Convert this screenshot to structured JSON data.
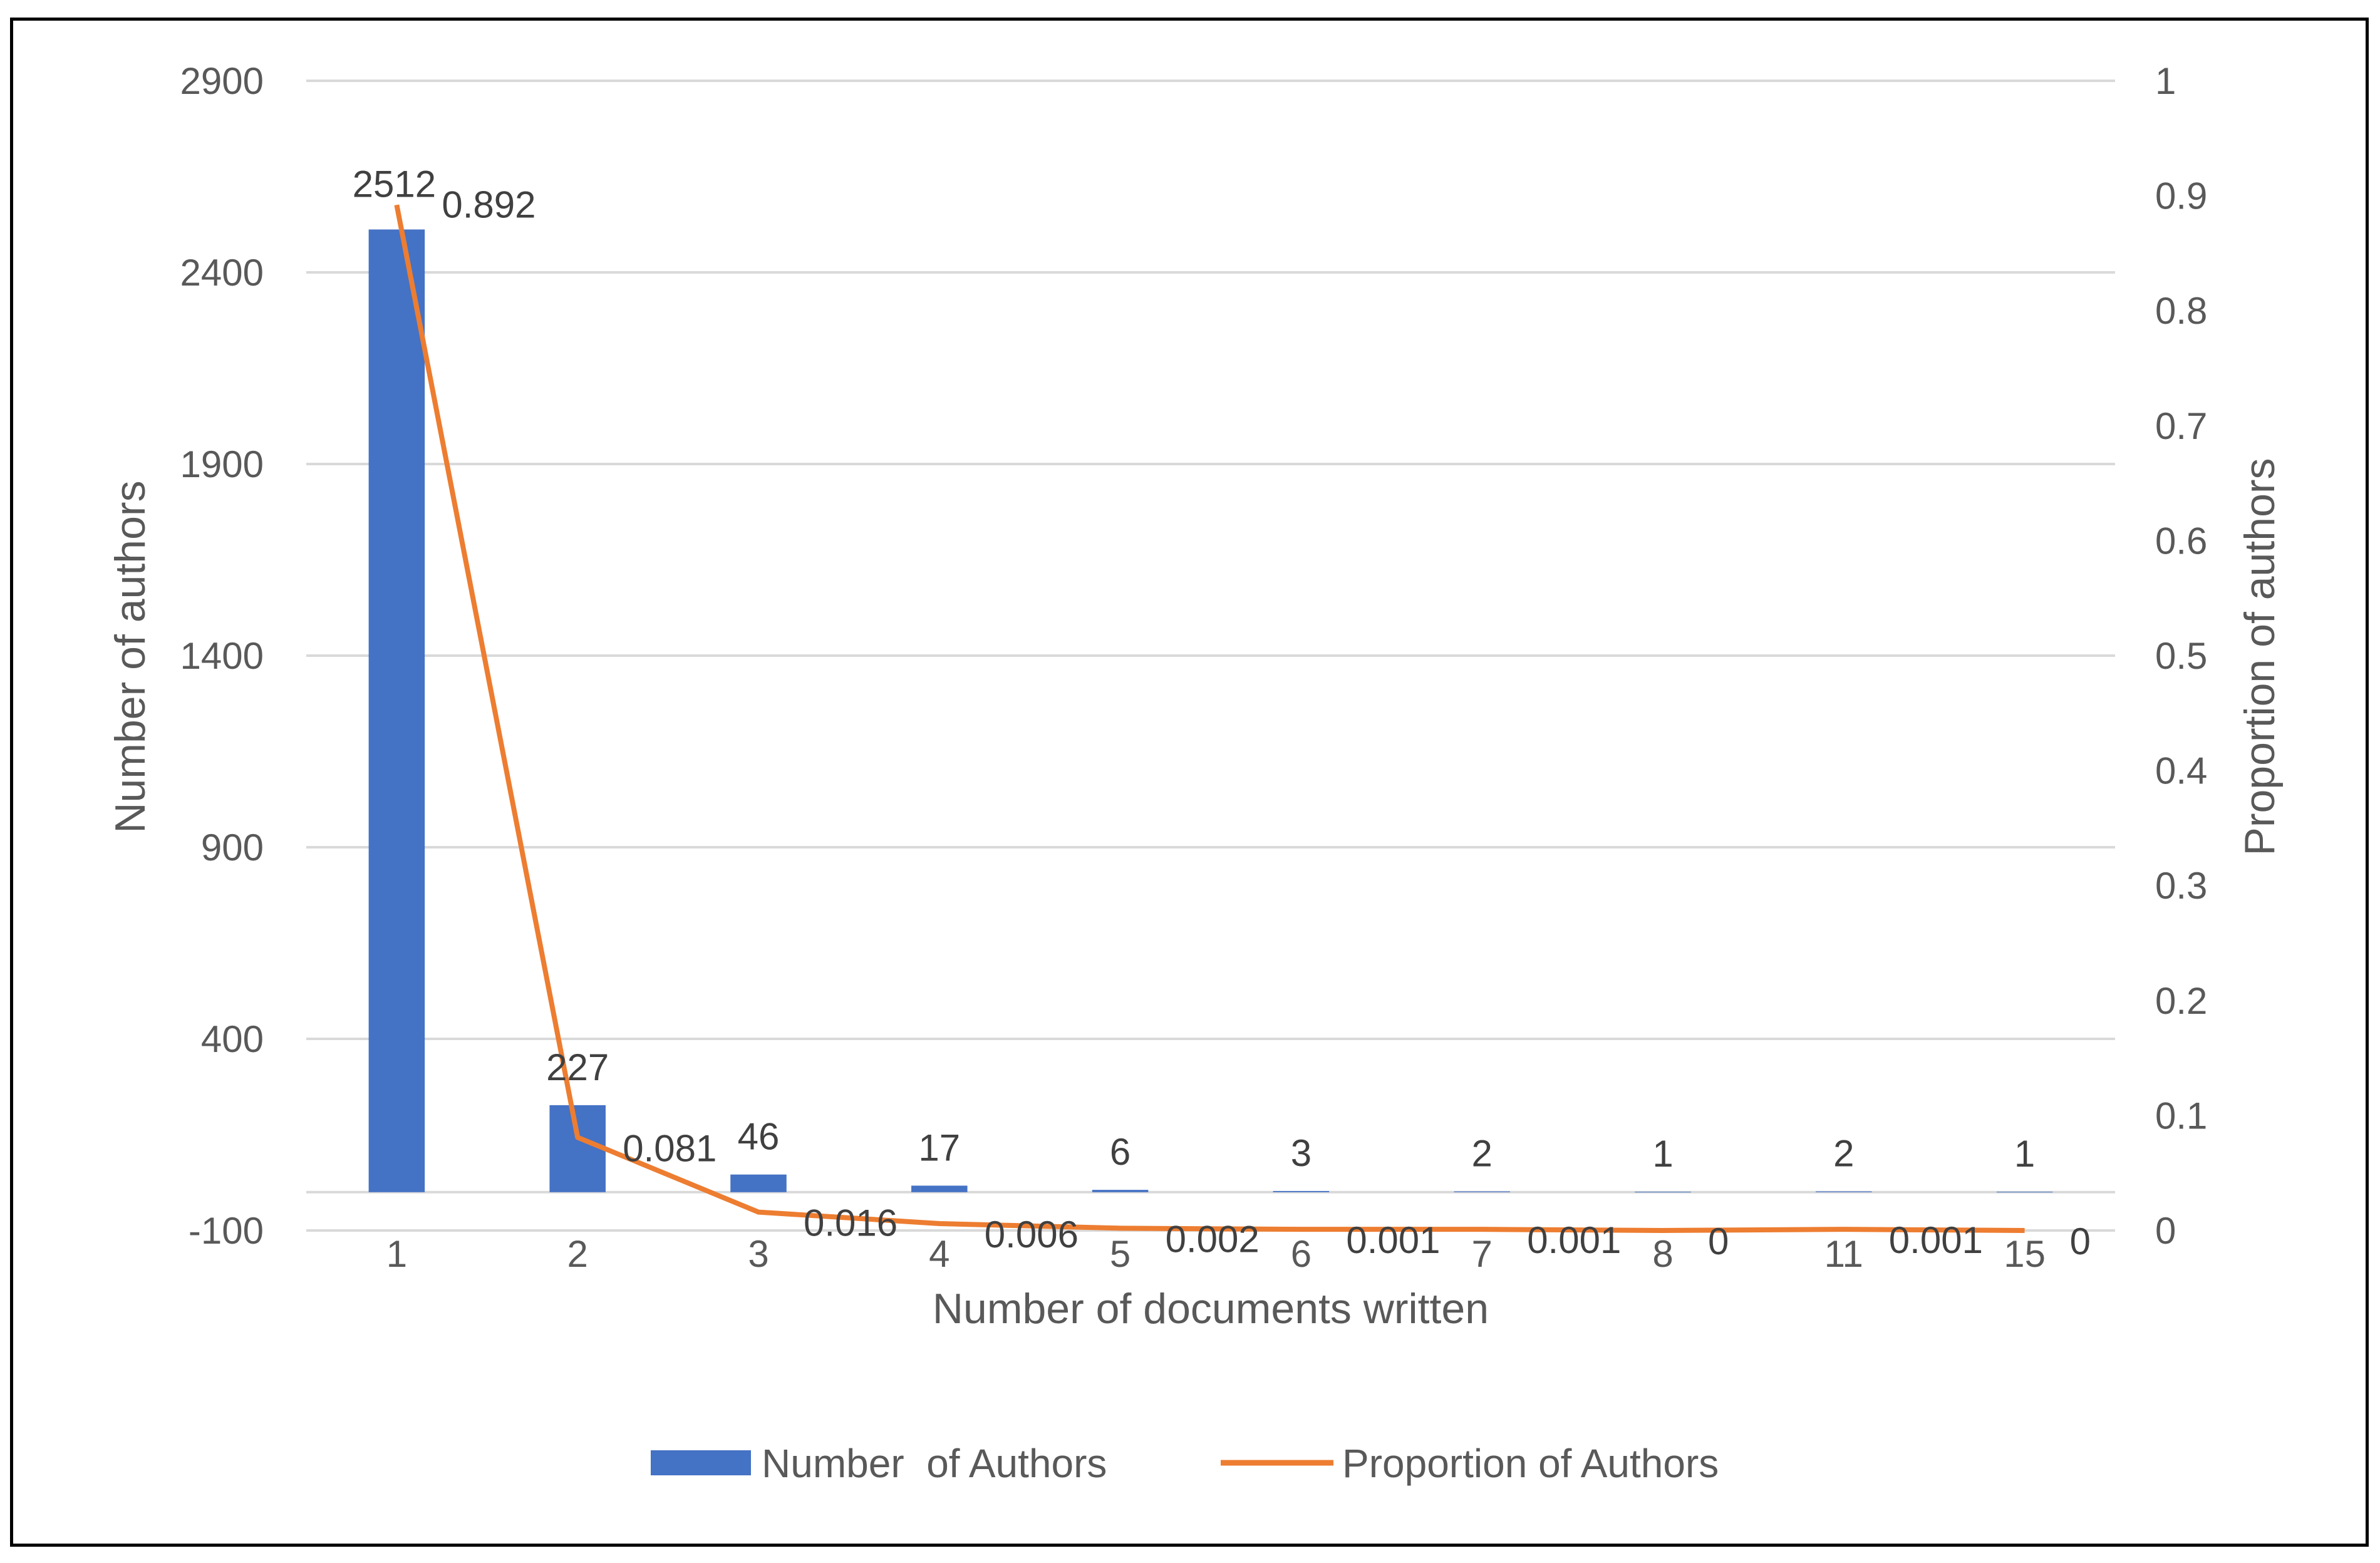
{
  "chart_data": {
    "type": "bar",
    "xlabel": "Number of documents written",
    "ylabel": "Number of authors",
    "y2label": "Proportion of authors",
    "categories": [
      "1",
      "2",
      "3",
      "4",
      "5",
      "6",
      "7",
      "8",
      "11",
      "15"
    ],
    "series": [
      {
        "name": "Number  of Authors",
        "type": "bar",
        "axis": "left",
        "color": "#4472C4",
        "values": [
          2512,
          227,
          46,
          17,
          6,
          3,
          2,
          1,
          2,
          1
        ],
        "labels": [
          "2512",
          "227",
          "46",
          "17",
          "6",
          "3",
          "2",
          "1",
          "2",
          "1"
        ]
      },
      {
        "name": "Proportion of Authors",
        "type": "line",
        "axis": "right",
        "color": "#ED7D31",
        "values": [
          0.892,
          0.081,
          0.016,
          0.006,
          0.002,
          0.001,
          0.001,
          0,
          0.001,
          0
        ],
        "labels": [
          "0.892",
          "0.081",
          "0.016",
          "0.006",
          "0.002",
          "0.001",
          "0.001",
          "0",
          "0.001",
          "0"
        ]
      }
    ],
    "ylim": [
      -100,
      2900
    ],
    "yticks": [
      "2900",
      "2400",
      "1900",
      "1400",
      "900",
      "400",
      "-100"
    ],
    "y2lim": [
      0,
      1
    ],
    "y2ticks": [
      "1",
      "0.9",
      "0.8",
      "0.7",
      "0.6",
      "0.5",
      "0.4",
      "0.3",
      "0.2",
      "0.1",
      "0"
    ],
    "grid": true,
    "legend_position": "bottom"
  }
}
